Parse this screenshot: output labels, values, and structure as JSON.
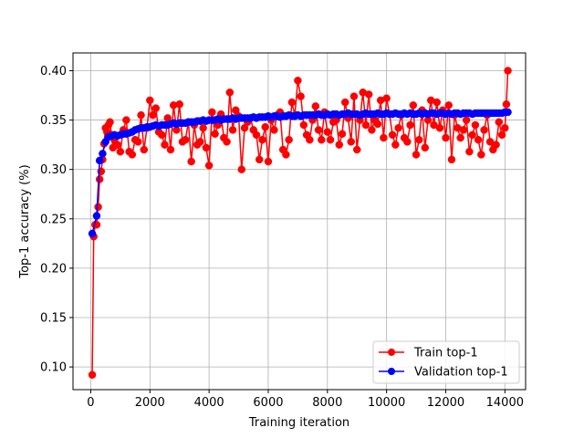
{
  "chart_data": {
    "type": "line",
    "title": "",
    "xlabel": "Training iteration",
    "ylabel": "Top-1 accuracy (%)",
    "xlim": [
      -600,
      14700
    ],
    "ylim": [
      0.077,
      0.418
    ],
    "xticks": [
      0,
      2000,
      4000,
      6000,
      8000,
      10000,
      12000,
      14000
    ],
    "yticks": [
      0.1,
      0.15,
      0.2,
      0.25,
      0.3,
      0.35,
      0.4
    ],
    "xtick_labels": [
      "0",
      "2000",
      "4000",
      "6000",
      "8000",
      "10000",
      "12000",
      "14000"
    ],
    "ytick_labels": [
      "0.10",
      "0.15",
      "0.20",
      "0.25",
      "0.30",
      "0.35",
      "0.40"
    ],
    "grid": true,
    "legend_position": "bottom-right",
    "series": [
      {
        "name": "Train top-1",
        "color": "#ff0000",
        "marker": "circle",
        "x": [
          50,
          100,
          150,
          200,
          250,
          300,
          350,
          400,
          450,
          500,
          550,
          600,
          650,
          700,
          750,
          800,
          900,
          1000,
          1100,
          1200,
          1300,
          1400,
          1500,
          1600,
          1700,
          1800,
          1900,
          2000,
          2100,
          2200,
          2300,
          2400,
          2500,
          2600,
          2700,
          2800,
          2900,
          3000,
          3100,
          3200,
          3300,
          3400,
          3500,
          3600,
          3700,
          3800,
          3900,
          4000,
          4100,
          4200,
          4300,
          4400,
          4500,
          4600,
          4700,
          4800,
          4900,
          5000,
          5100,
          5200,
          5300,
          5400,
          5500,
          5600,
          5700,
          5800,
          5900,
          6000,
          6100,
          6200,
          6300,
          6400,
          6500,
          6600,
          6700,
          6800,
          6900,
          7000,
          7100,
          7200,
          7300,
          7400,
          7500,
          7600,
          7700,
          7800,
          7900,
          8000,
          8100,
          8200,
          8300,
          8400,
          8500,
          8600,
          8700,
          8800,
          8900,
          9000,
          9100,
          9200,
          9300,
          9400,
          9500,
          9600,
          9700,
          9800,
          9900,
          10000,
          10100,
          10200,
          10300,
          10400,
          10500,
          10600,
          10700,
          10800,
          10900,
          11000,
          11100,
          11200,
          11300,
          11400,
          11500,
          11600,
          11700,
          11800,
          11900,
          12000,
          12100,
          12200,
          12300,
          12400,
          12500,
          12600,
          12700,
          12800,
          12900,
          13000,
          13100,
          13200,
          13300,
          13400,
          13500,
          13600,
          13700,
          13800,
          13900,
          14000,
          14050,
          14100
        ],
        "values": [
          0.092,
          0.232,
          0.244,
          0.244,
          0.262,
          0.29,
          0.298,
          0.31,
          0.326,
          0.342,
          0.338,
          0.345,
          0.348,
          0.335,
          0.322,
          0.33,
          0.325,
          0.318,
          0.34,
          0.35,
          0.318,
          0.315,
          0.33,
          0.328,
          0.355,
          0.32,
          0.342,
          0.37,
          0.355,
          0.362,
          0.338,
          0.335,
          0.325,
          0.352,
          0.32,
          0.365,
          0.34,
          0.366,
          0.328,
          0.33,
          0.348,
          0.308,
          0.345,
          0.325,
          0.328,
          0.342,
          0.322,
          0.304,
          0.358,
          0.336,
          0.345,
          0.356,
          0.332,
          0.328,
          0.378,
          0.34,
          0.36,
          0.354,
          0.3,
          0.342,
          0.348,
          0.352,
          0.34,
          0.335,
          0.31,
          0.33,
          0.343,
          0.308,
          0.35,
          0.34,
          0.355,
          0.358,
          0.32,
          0.315,
          0.33,
          0.368,
          0.355,
          0.39,
          0.374,
          0.345,
          0.335,
          0.33,
          0.35,
          0.364,
          0.34,
          0.33,
          0.358,
          0.338,
          0.33,
          0.348,
          0.35,
          0.325,
          0.336,
          0.368,
          0.352,
          0.328,
          0.374,
          0.32,
          0.35,
          0.378,
          0.345,
          0.376,
          0.34,
          0.35,
          0.346,
          0.37,
          0.332,
          0.372,
          0.356,
          0.335,
          0.325,
          0.342,
          0.355,
          0.332,
          0.328,
          0.345,
          0.365,
          0.315,
          0.33,
          0.36,
          0.322,
          0.35,
          0.37,
          0.345,
          0.368,
          0.342,
          0.36,
          0.332,
          0.365,
          0.31,
          0.355,
          0.342,
          0.332,
          0.34,
          0.35,
          0.318,
          0.335,
          0.345,
          0.33,
          0.315,
          0.34,
          0.355,
          0.328,
          0.32,
          0.325,
          0.348,
          0.335,
          0.342,
          0.366,
          0.4
        ]
      },
      {
        "name": "Validation top-1",
        "color": "#0000ff",
        "marker": "circle",
        "x": [
          50,
          200,
          300,
          400,
          500,
          600,
          700,
          800,
          900,
          1000,
          1100,
          1200,
          1300,
          1400,
          1500,
          1600,
          1700,
          1800,
          1900,
          2000,
          2100,
          2200,
          2300,
          2400,
          2500,
          2600,
          2700,
          2800,
          2900,
          3000,
          3100,
          3200,
          3300,
          3400,
          3500,
          3600,
          3700,
          3800,
          3900,
          4000,
          4100,
          4200,
          4300,
          4400,
          4500,
          4600,
          4700,
          4800,
          4900,
          5000,
          5100,
          5200,
          5300,
          5400,
          5500,
          5600,
          5700,
          5800,
          5900,
          6000,
          6100,
          6200,
          6300,
          6400,
          6500,
          6600,
          6700,
          6800,
          6900,
          7000,
          7100,
          7200,
          7300,
          7400,
          7500,
          7600,
          7700,
          7800,
          7900,
          8000,
          8100,
          8200,
          8300,
          8400,
          8500,
          8600,
          8700,
          8800,
          8900,
          9000,
          9100,
          9200,
          9300,
          9400,
          9500,
          9600,
          9700,
          9800,
          9900,
          10000,
          10100,
          10200,
          10300,
          10400,
          10500,
          10600,
          10700,
          10800,
          10900,
          11000,
          11100,
          11200,
          11300,
          11400,
          11500,
          11600,
          11700,
          11800,
          11900,
          12000,
          12100,
          12200,
          12300,
          12400,
          12500,
          12600,
          12700,
          12800,
          12900,
          13000,
          13100,
          13200,
          13300,
          13400,
          13500,
          13600,
          13700,
          13800,
          13900,
          14000,
          14100
        ],
        "values": [
          0.235,
          0.253,
          0.309,
          0.316,
          0.328,
          0.333,
          0.334,
          0.335,
          0.334,
          0.335,
          0.336,
          0.336,
          0.337,
          0.338,
          0.34,
          0.341,
          0.342,
          0.342,
          0.343,
          0.343,
          0.344,
          0.345,
          0.344,
          0.345,
          0.345,
          0.345,
          0.346,
          0.347,
          0.346,
          0.347,
          0.347,
          0.347,
          0.348,
          0.348,
          0.348,
          0.349,
          0.349,
          0.35,
          0.349,
          0.35,
          0.35,
          0.35,
          0.351,
          0.35,
          0.351,
          0.351,
          0.351,
          0.352,
          0.351,
          0.352,
          0.352,
          0.352,
          0.352,
          0.352,
          0.353,
          0.352,
          0.353,
          0.353,
          0.353,
          0.354,
          0.353,
          0.354,
          0.354,
          0.353,
          0.354,
          0.354,
          0.355,
          0.354,
          0.354,
          0.355,
          0.354,
          0.355,
          0.355,
          0.355,
          0.355,
          0.355,
          0.356,
          0.355,
          0.355,
          0.356,
          0.355,
          0.356,
          0.356,
          0.355,
          0.356,
          0.356,
          0.357,
          0.356,
          0.356,
          0.356,
          0.355,
          0.356,
          0.357,
          0.356,
          0.356,
          0.356,
          0.357,
          0.356,
          0.356,
          0.357,
          0.356,
          0.356,
          0.357,
          0.356,
          0.356,
          0.357,
          0.356,
          0.357,
          0.356,
          0.356,
          0.357,
          0.356,
          0.357,
          0.356,
          0.357,
          0.357,
          0.356,
          0.357,
          0.357,
          0.356,
          0.357,
          0.356,
          0.357,
          0.357,
          0.356,
          0.357,
          0.357,
          0.357,
          0.356,
          0.357,
          0.357,
          0.357,
          0.357,
          0.357,
          0.357,
          0.357,
          0.357,
          0.357,
          0.357,
          0.358,
          0.358
        ]
      }
    ]
  }
}
